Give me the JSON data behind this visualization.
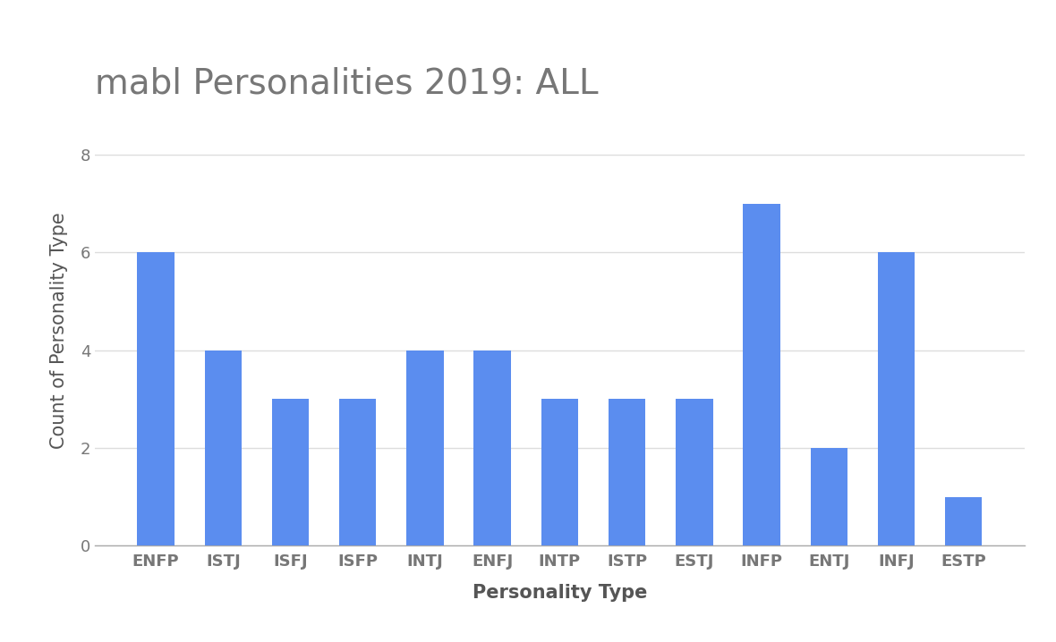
{
  "title": "mabl Personalities 2019: ALL",
  "xlabel": "Personality Type",
  "ylabel": "Count of Personality Type",
  "categories": [
    "ENFP",
    "ISTJ",
    "ISFJ",
    "ISFP",
    "INTJ",
    "ENFJ",
    "INTP",
    "ISTP",
    "ESTJ",
    "INFP",
    "ENTJ",
    "INFJ",
    "ESTP"
  ],
  "values": [
    6,
    4,
    3,
    3,
    4,
    4,
    3,
    3,
    3,
    7,
    2,
    6,
    1
  ],
  "bar_color": "#5b8def",
  "ylim": [
    0,
    8.8
  ],
  "yticks": [
    0,
    2,
    4,
    6,
    8
  ],
  "title_fontsize": 28,
  "axis_label_fontsize": 15,
  "tick_fontsize": 13,
  "background_color": "#ffffff",
  "grid_color": "#dddddd",
  "title_color": "#777777",
  "tick_color": "#777777",
  "label_color": "#555555"
}
